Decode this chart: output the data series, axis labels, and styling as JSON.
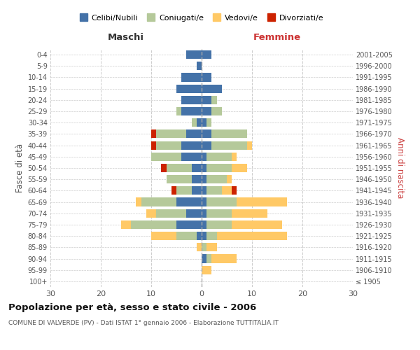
{
  "age_groups": [
    "100+",
    "95-99",
    "90-94",
    "85-89",
    "80-84",
    "75-79",
    "70-74",
    "65-69",
    "60-64",
    "55-59",
    "50-54",
    "45-49",
    "40-44",
    "35-39",
    "30-34",
    "25-29",
    "20-24",
    "15-19",
    "10-14",
    "5-9",
    "0-4"
  ],
  "birth_years": [
    "≤ 1905",
    "1906-1910",
    "1911-1915",
    "1916-1920",
    "1921-1925",
    "1926-1930",
    "1931-1935",
    "1936-1940",
    "1941-1945",
    "1946-1950",
    "1951-1955",
    "1956-1960",
    "1961-1965",
    "1966-1970",
    "1971-1975",
    "1976-1980",
    "1981-1985",
    "1986-1990",
    "1991-1995",
    "1996-2000",
    "2001-2005"
  ],
  "male": {
    "celibi": [
      0,
      0,
      0,
      0,
      1,
      5,
      3,
      5,
      2,
      2,
      2,
      4,
      4,
      3,
      1,
      4,
      4,
      5,
      4,
      1,
      3
    ],
    "coniugati": [
      0,
      0,
      0,
      0,
      4,
      9,
      6,
      7,
      3,
      5,
      5,
      6,
      5,
      6,
      1,
      1,
      0,
      0,
      0,
      0,
      0
    ],
    "vedovi": [
      0,
      0,
      0,
      1,
      5,
      2,
      2,
      1,
      0,
      0,
      0,
      0,
      0,
      0,
      0,
      0,
      0,
      0,
      0,
      0,
      0
    ],
    "divorziati": [
      0,
      0,
      0,
      0,
      0,
      0,
      0,
      0,
      1,
      0,
      1,
      0,
      1,
      1,
      0,
      0,
      0,
      0,
      0,
      0,
      0
    ]
  },
  "female": {
    "nubili": [
      0,
      0,
      1,
      0,
      1,
      1,
      1,
      1,
      1,
      1,
      1,
      1,
      2,
      2,
      1,
      2,
      2,
      4,
      2,
      0,
      2
    ],
    "coniugate": [
      0,
      0,
      1,
      1,
      2,
      5,
      5,
      6,
      3,
      4,
      5,
      5,
      7,
      7,
      1,
      2,
      1,
      0,
      0,
      0,
      0
    ],
    "vedove": [
      0,
      2,
      5,
      2,
      14,
      10,
      7,
      10,
      2,
      1,
      3,
      1,
      1,
      0,
      0,
      0,
      0,
      0,
      0,
      0,
      0
    ],
    "divorziate": [
      0,
      0,
      0,
      0,
      0,
      0,
      0,
      0,
      1,
      0,
      0,
      0,
      0,
      0,
      0,
      0,
      0,
      0,
      0,
      0,
      0
    ]
  },
  "colors": {
    "celibi_nubili": "#4472a8",
    "coniugati": "#b5c99a",
    "vedovi": "#ffc966",
    "divorziati": "#cc2200"
  },
  "xlim": 30,
  "title": "Popolazione per età, sesso e stato civile - 2006",
  "subtitle": "COMUNE DI VALVERDE (PV) - Dati ISTAT 1° gennaio 2006 - Elaborazione TUTTITALIA.IT",
  "ylabel_left": "Fasce di età",
  "ylabel_right": "Anni di nascita",
  "xlabel_left": "Maschi",
  "xlabel_right": "Femmine",
  "legend_labels": [
    "Celibi/Nubili",
    "Coniugati/e",
    "Vedovi/e",
    "Divorziati/e"
  ],
  "background_color": "#ffffff",
  "grid_color": "#cccccc"
}
